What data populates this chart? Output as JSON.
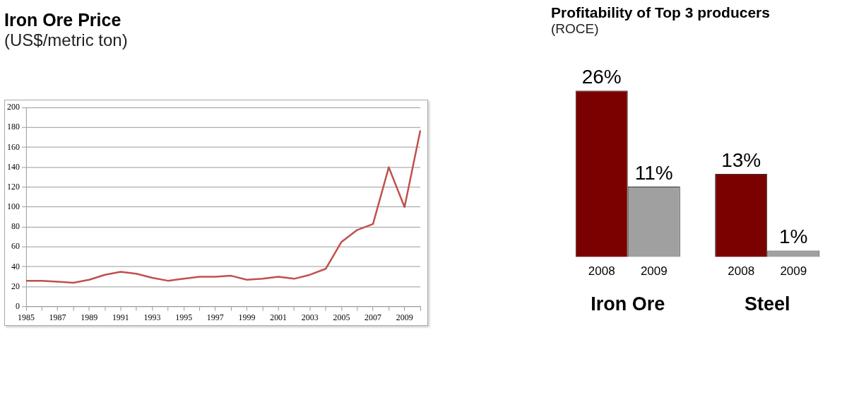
{
  "chart_data": [
    {
      "type": "line",
      "title": "Iron Ore Price",
      "subtitle": "(US$/metric ton)",
      "categories": [
        "1985",
        null,
        "1987",
        null,
        "1989",
        null,
        "1991",
        null,
        "1993",
        null,
        "1995",
        null,
        "1997",
        null,
        "1999",
        null,
        "2001",
        null,
        "2003",
        null,
        "2005",
        null,
        "2007",
        null,
        "2009",
        null
      ],
      "series": [
        {
          "color": "#c0504d",
          "values": [
            26,
            26,
            25,
            24,
            27,
            32,
            35,
            33,
            29,
            26,
            28,
            30,
            30,
            31,
            27,
            28,
            30,
            28,
            32,
            38,
            65,
            77,
            83,
            140,
            100,
            177
          ]
        }
      ],
      "ylim": [
        0,
        200
      ],
      "yticks": [
        0,
        20,
        40,
        60,
        80,
        100,
        120,
        140,
        160,
        180,
        200
      ],
      "grid": "y",
      "legend": false,
      "marker": "none"
    },
    {
      "type": "bar",
      "title": "Profitability of Top 3 producers",
      "subtitle": "(ROCE)",
      "categories": [
        "Iron Ore",
        "Steel"
      ],
      "series": [
        {
          "name": "2008",
          "color": "#7b0000",
          "values": [
            26,
            13
          ],
          "value_labels": [
            "26%",
            "13%"
          ]
        },
        {
          "name": "2009",
          "color": "#a0a0a0",
          "values": [
            11,
            1
          ],
          "value_labels": [
            "11%",
            "1%"
          ]
        }
      ],
      "legend": false
    }
  ]
}
